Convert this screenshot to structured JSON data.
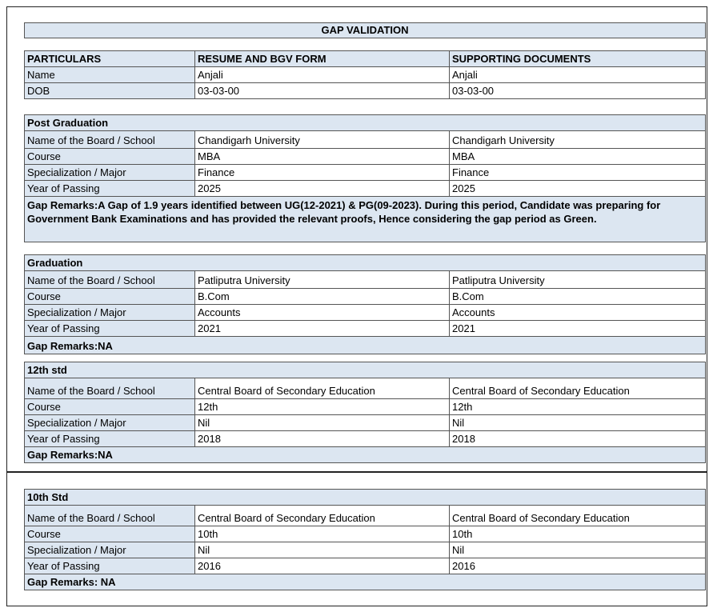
{
  "title": "GAP VALIDATION",
  "header": {
    "columns": [
      "PARTICULARS",
      "RESUME AND BGV FORM",
      "SUPPORTING DOCUMENTS"
    ],
    "rows": [
      [
        "Name",
        "Anjali",
        "Anjali"
      ],
      [
        "DOB",
        "03-03-00",
        "03-03-00"
      ]
    ]
  },
  "sections": [
    {
      "heading": "Post Graduation",
      "rows": [
        [
          "Name of the Board / School",
          "Chandigarh University",
          "Chandigarh University"
        ],
        [
          "Course",
          "MBA",
          "MBA"
        ],
        [
          "Specialization / Major",
          "Finance",
          "Finance"
        ],
        [
          "Year of Passing",
          "2025",
          "2025"
        ]
      ],
      "remarks": "Gap Remarks:A Gap of 1.9 years identified between UG(12-2021) & PG(09-2023). During this period, Candidate was preparing for Government Bank Examinations and has provided the relevant proofs, Hence considering the gap period as Green."
    },
    {
      "heading": "Graduation",
      "rows": [
        [
          "Name of the Board / School",
          "Patliputra University",
          "Patliputra University"
        ],
        [
          "Course",
          "B.Com",
          "B.Com"
        ],
        [
          "Specialization / Major",
          "Accounts",
          "Accounts"
        ],
        [
          "Year of Passing",
          "2021",
          "2021"
        ]
      ],
      "remarks": "Gap Remarks:NA"
    },
    {
      "heading": "12th std",
      "rows": [
        [
          "Name of the Board / School",
          "Central Board of Secondary Education",
          "Central Board of Secondary Education"
        ],
        [
          "Course",
          "12th",
          "12th"
        ],
        [
          "Specialization / Major",
          "Nil",
          "Nil"
        ],
        [
          "Year of Passing",
          "2018",
          "2018"
        ]
      ],
      "remarks": "Gap Remarks:NA"
    },
    {
      "heading": "10th Std",
      "rows": [
        [
          "Name of the Board / School",
          "Central Board of Secondary Education",
          "Central Board of Secondary Education"
        ],
        [
          "Course",
          "10th",
          "10th"
        ],
        [
          "Specialization / Major",
          "Nil",
          "Nil"
        ],
        [
          "Year of Passing",
          "2016",
          "2016"
        ]
      ],
      "remarks": "Gap Remarks: NA"
    }
  ]
}
